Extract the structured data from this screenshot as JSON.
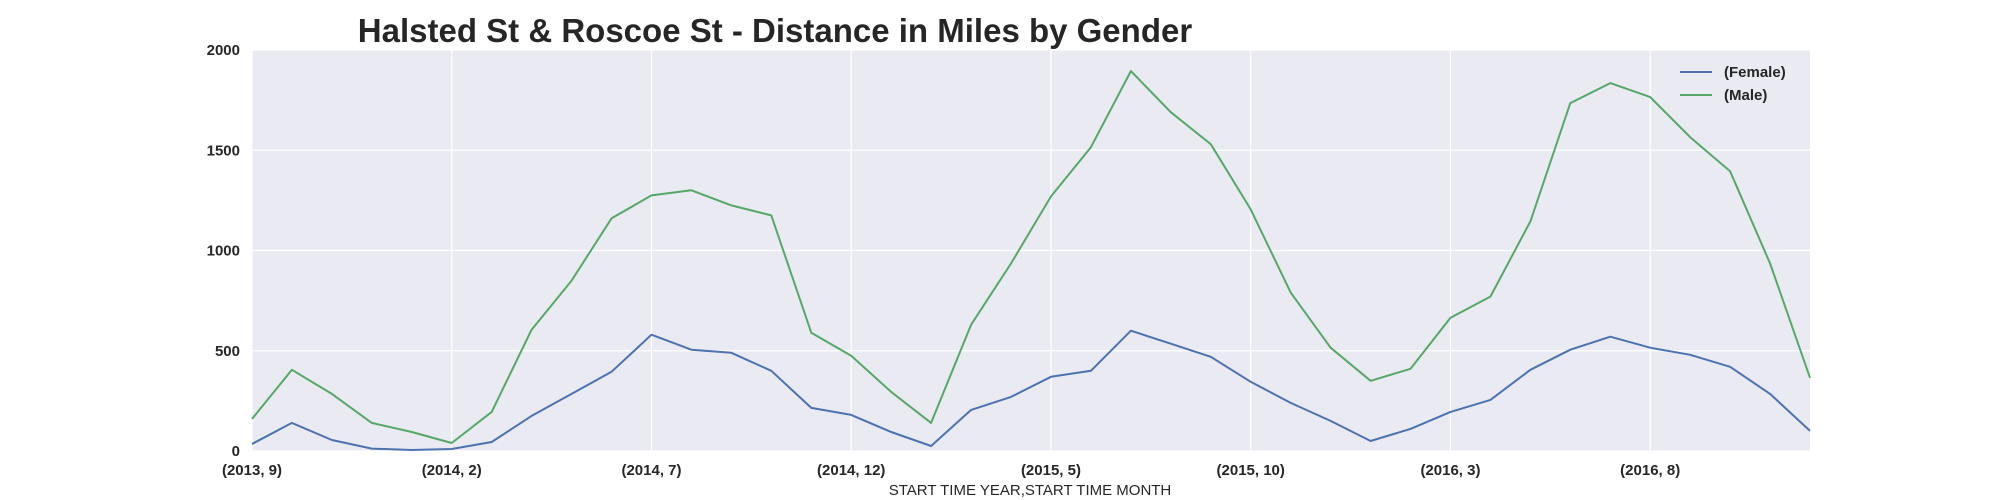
{
  "chart_data": {
    "type": "line",
    "title": "Halsted St & Roscoe St - Distance in Miles by Gender",
    "xlabel": "START TIME YEAR,START TIME MONTH",
    "ylabel": "",
    "ylim": [
      0,
      2000
    ],
    "yticks": [
      0,
      500,
      1000,
      1500,
      2000
    ],
    "x_tick_labels": [
      "(2013, 9)",
      "(2014, 2)",
      "(2014, 7)",
      "(2014, 12)",
      "(2015, 5)",
      "(2015, 10)",
      "(2016, 3)",
      "(2016, 8)"
    ],
    "x_tick_step": 5,
    "categories": [
      "(2013, 9)",
      "(2013, 10)",
      "(2013, 11)",
      "(2013, 12)",
      "(2014, 1)",
      "(2014, 2)",
      "(2014, 3)",
      "(2014, 4)",
      "(2014, 5)",
      "(2014, 6)",
      "(2014, 7)",
      "(2014, 8)",
      "(2014, 9)",
      "(2014, 10)",
      "(2014, 11)",
      "(2014, 12)",
      "(2015, 1)",
      "(2015, 2)",
      "(2015, 3)",
      "(2015, 4)",
      "(2015, 5)",
      "(2015, 6)",
      "(2015, 7)",
      "(2015, 8)",
      "(2015, 9)",
      "(2015, 10)",
      "(2015, 11)",
      "(2015, 12)",
      "(2016, 1)",
      "(2016, 2)",
      "(2016, 3)",
      "(2016, 4)",
      "(2016, 5)",
      "(2016, 6)",
      "(2016, 7)",
      "(2016, 8)",
      "(2016, 9)",
      "(2016, 10)",
      "(2016, 11)",
      "(2016, 12)"
    ],
    "grid": true,
    "legend_position": "top-right",
    "series": [
      {
        "name": "(Female)",
        "color": "#4c72b0",
        "values": [
          35,
          140,
          55,
          12,
          5,
          10,
          45,
          175,
          285,
          395,
          580,
          505,
          490,
          400,
          215,
          180,
          95,
          25,
          205,
          270,
          370,
          400,
          600,
          535,
          470,
          345,
          240,
          150,
          50,
          110,
          195,
          255,
          405,
          505,
          570,
          515,
          480,
          420,
          285,
          100
        ]
      },
      {
        "name": "(Male)",
        "color": "#55a868",
        "values": [
          160,
          405,
          285,
          140,
          95,
          40,
          195,
          605,
          850,
          1160,
          1275,
          1300,
          1225,
          1175,
          590,
          475,
          295,
          140,
          630,
          935,
          1270,
          1515,
          1895,
          1690,
          1530,
          1205,
          790,
          515,
          350,
          410,
          665,
          770,
          1145,
          1735,
          1835,
          1765,
          1565,
          1395,
          935,
          365
        ]
      }
    ]
  }
}
